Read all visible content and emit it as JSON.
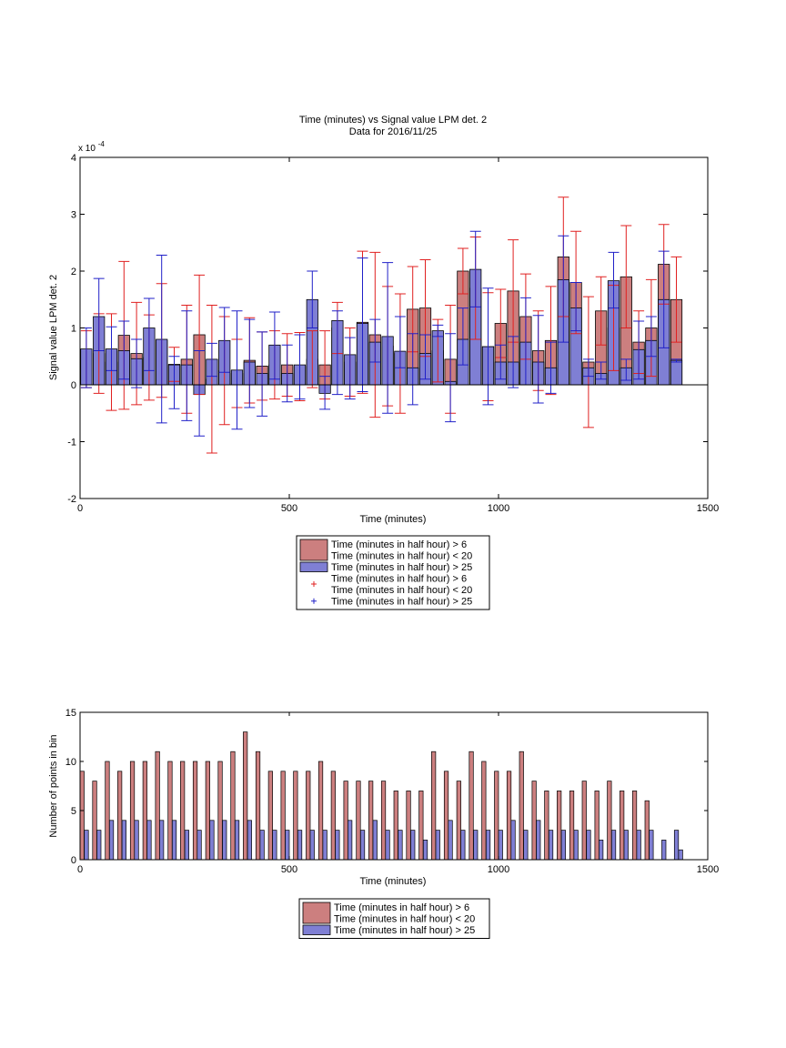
{
  "colors": {
    "red_fill": "#cc7f7f",
    "blue_fill": "#7f7fd4",
    "red_line": "#e02020",
    "blue_line": "#2020c8"
  },
  "chart_data": [
    {
      "type": "bar",
      "title": "Time (minutes) vs Signal value LPM det. 2",
      "subtitle": "Data for 2016/11/25",
      "xlabel": "Time (minutes)",
      "ylabel": "Signal value LPM det. 2",
      "exponent_label": "x 10",
      "exponent_power": "-4",
      "xlim": [
        0,
        1500
      ],
      "ylim": [
        -2,
        4
      ],
      "x_ticks": [
        0,
        500,
        1000,
        1500
      ],
      "y_ticks": [
        -2,
        -1,
        0,
        1,
        2,
        3,
        4
      ],
      "grid": false,
      "legend_placement": "below",
      "legend": [
        {
          "kind": "bar",
          "color": "red",
          "lines": [
            "Time (minutes in half hour) > 6",
            "Time (minutes in half hour) < 20"
          ]
        },
        {
          "kind": "bar",
          "color": "blue",
          "lines": [
            "Time (minutes in half hour) > 25"
          ]
        },
        {
          "kind": "marker",
          "color": "red",
          "lines": [
            "Time (minutes in half hour) > 6",
            "Time (minutes in half hour) < 20"
          ]
        },
        {
          "kind": "marker",
          "color": "blue",
          "lines": [
            "Time (minutes in half hour) > 25"
          ]
        }
      ],
      "series": [
        {
          "color": "red",
          "x": [
            15,
            45,
            75,
            105,
            135,
            165,
            195,
            225,
            255,
            285,
            315,
            345,
            375,
            405,
            435,
            465,
            495,
            525,
            555,
            585,
            615,
            645,
            675,
            705,
            735,
            765,
            795,
            825,
            855,
            885,
            915,
            945,
            975,
            1005,
            1035,
            1065,
            1095,
            1125,
            1155,
            1185,
            1215,
            1245,
            1275,
            1305,
            1335,
            1365,
            1395,
            1425
          ],
          "values": [
            0.45,
            0.55,
            0.4,
            0.87,
            0.55,
            0.48,
            0.78,
            0.36,
            0.45,
            0.88,
            0.1,
            0.25,
            0.2,
            0.43,
            0.33,
            0.35,
            0.35,
            0.32,
            0.45,
            0.35,
            1.0,
            0.4,
            1.1,
            0.88,
            0.68,
            0.55,
            1.33,
            1.35,
            0.6,
            0.45,
            2.0,
            1.7,
            0.67,
            1.08,
            1.65,
            1.2,
            0.6,
            0.78,
            2.25,
            1.8,
            0.4,
            1.3,
            1.0,
            1.9,
            0.75,
            1.0,
            2.12,
            1.5
          ],
          "err": [
            0.5,
            0.7,
            0.85,
            1.3,
            0.9,
            0.75,
            1.0,
            0.3,
            0.95,
            1.05,
            1.3,
            0.95,
            0.6,
            0.75,
            0.6,
            0.6,
            0.55,
            0.6,
            0.5,
            0.6,
            0.45,
            0.6,
            1.25,
            1.45,
            1.05,
            1.05,
            0.75,
            0.85,
            0.55,
            0.95,
            0.4,
            0.9,
            0.95,
            0.6,
            0.9,
            0.75,
            0.7,
            0.95,
            1.05,
            0.9,
            1.15,
            0.6,
            0.75,
            0.9,
            0.55,
            0.85,
            0.7,
            0.75
          ]
        },
        {
          "color": "blue",
          "x": [
            15,
            45,
            75,
            105,
            135,
            165,
            195,
            225,
            255,
            285,
            315,
            345,
            375,
            405,
            435,
            465,
            495,
            525,
            555,
            585,
            615,
            645,
            675,
            705,
            735,
            765,
            795,
            825,
            855,
            885,
            915,
            945,
            975,
            1005,
            1035,
            1065,
            1095,
            1125,
            1155,
            1185,
            1215,
            1245,
            1275,
            1305,
            1335,
            1365,
            1395,
            1425
          ],
          "values": [
            0.63,
            1.2,
            0.63,
            0.6,
            0.46,
            1.0,
            0.8,
            0.35,
            0.35,
            -0.17,
            0.45,
            0.78,
            0.26,
            0.4,
            0.2,
            0.7,
            0.2,
            0.35,
            1.5,
            -0.15,
            1.13,
            0.53,
            1.08,
            0.75,
            0.85,
            0.59,
            0.3,
            0.55,
            0.95,
            0.06,
            0.8,
            2.03,
            0.67,
            0.4,
            0.4,
            0.75,
            0.4,
            0.3,
            1.85,
            1.35,
            0.3,
            0.2,
            1.83,
            0.3,
            0.62,
            0.78,
            1.5,
            0.43
          ]
        }
      ],
      "blue_err_segments": [
        [
          15,
          -0.05,
          1.0
        ],
        [
          45,
          0.6,
          1.87
        ],
        [
          75,
          0.25,
          1.02
        ],
        [
          105,
          0.1,
          1.12
        ],
        [
          135,
          -0.05,
          0.8
        ],
        [
          165,
          0.25,
          1.52
        ],
        [
          195,
          -0.67,
          2.28
        ],
        [
          225,
          -0.42,
          0.5
        ],
        [
          255,
          -0.63,
          1.3
        ],
        [
          285,
          -0.9,
          0.6
        ],
        [
          315,
          0.15,
          0.73
        ],
        [
          345,
          0.22,
          1.36
        ],
        [
          375,
          -0.78,
          1.3
        ],
        [
          405,
          -0.4,
          1.15
        ],
        [
          435,
          -0.55,
          0.93
        ],
        [
          465,
          0.1,
          1.28
        ],
        [
          495,
          -0.3,
          0.7
        ],
        [
          525,
          -0.25,
          0.88
        ],
        [
          555,
          1.0,
          2.0
        ],
        [
          585,
          -0.43,
          0.15
        ],
        [
          615,
          -0.17,
          1.3
        ],
        [
          645,
          -0.25,
          0.83
        ],
        [
          675,
          -0.12,
          2.23
        ],
        [
          705,
          0.4,
          1.15
        ],
        [
          735,
          -0.5,
          2.15
        ],
        [
          765,
          0.3,
          1.2
        ],
        [
          795,
          -0.35,
          0.9
        ],
        [
          825,
          0.1,
          0.88
        ],
        [
          855,
          0.85,
          1.05
        ],
        [
          885,
          -0.65,
          0.9
        ],
        [
          915,
          0.35,
          1.35
        ],
        [
          945,
          1.37,
          2.7
        ],
        [
          975,
          -0.35,
          1.7
        ],
        [
          1005,
          0.1,
          0.7
        ],
        [
          1035,
          -0.05,
          0.85
        ],
        [
          1065,
          0.0,
          1.53
        ],
        [
          1095,
          -0.32,
          1.22
        ],
        [
          1125,
          -0.15,
          0.75
        ],
        [
          1155,
          0.75,
          2.62
        ],
        [
          1185,
          0.95,
          1.8
        ],
        [
          1215,
          0.15,
          0.45
        ],
        [
          1245,
          0.1,
          0.4
        ],
        [
          1275,
          1.35,
          2.33
        ],
        [
          1305,
          0.08,
          0.45
        ],
        [
          1335,
          0.1,
          1.12
        ],
        [
          1365,
          0.5,
          1.2
        ],
        [
          1395,
          0.65,
          2.35
        ],
        [
          1425,
          0.4,
          0.45
        ]
      ]
    },
    {
      "type": "bar",
      "xlabel": "Time (minutes)",
      "ylabel": "Number of points in bin",
      "xlim": [
        0,
        1500
      ],
      "ylim": [
        0,
        15
      ],
      "x_ticks": [
        0,
        500,
        1000,
        1500
      ],
      "y_ticks": [
        0,
        5,
        10,
        15
      ],
      "grid": false,
      "legend_placement": "below",
      "legend": [
        {
          "kind": "bar",
          "color": "red",
          "lines": [
            "Time (minutes in half hour) > 6",
            "Time (minutes in half hour) < 20"
          ]
        },
        {
          "kind": "bar",
          "color": "blue",
          "lines": [
            "Time (minutes in half hour) > 25"
          ]
        }
      ],
      "series": [
        {
          "color": "red",
          "x": [
            5,
            35,
            65,
            95,
            125,
            155,
            185,
            215,
            245,
            275,
            305,
            335,
            365,
            395,
            425,
            455,
            485,
            515,
            545,
            575,
            605,
            635,
            665,
            695,
            725,
            755,
            785,
            815,
            845,
            875,
            905,
            935,
            965,
            995,
            1025,
            1055,
            1085,
            1115,
            1145,
            1175,
            1205,
            1235,
            1265,
            1295,
            1325,
            1355,
            1385,
            1415
          ],
          "values": [
            9,
            8,
            10,
            9,
            10,
            10,
            11,
            10,
            10,
            10,
            10,
            10,
            11,
            13,
            11,
            9,
            9,
            9,
            9,
            10,
            9,
            8,
            8,
            8,
            8,
            7,
            7,
            7,
            11,
            9,
            8,
            11,
            10,
            9,
            9,
            11,
            8,
            7,
            7,
            7,
            8,
            7,
            8,
            7,
            7,
            6,
            0,
            0
          ]
        },
        {
          "color": "blue",
          "x": [
            15,
            45,
            75,
            105,
            135,
            165,
            195,
            225,
            255,
            285,
            315,
            345,
            375,
            405,
            435,
            465,
            495,
            525,
            555,
            585,
            615,
            645,
            675,
            705,
            735,
            765,
            795,
            825,
            855,
            885,
            915,
            945,
            975,
            1005,
            1035,
            1065,
            1095,
            1125,
            1155,
            1185,
            1215,
            1245,
            1275,
            1305,
            1335,
            1365,
            1395,
            1425,
            1435
          ],
          "values": [
            3,
            3,
            4,
            4,
            4,
            4,
            4,
            4,
            3,
            3,
            4,
            4,
            4,
            4,
            3,
            3,
            3,
            3,
            3,
            3,
            3,
            4,
            3,
            4,
            3,
            3,
            3,
            2,
            3,
            4,
            3,
            3,
            3,
            3,
            4,
            3,
            4,
            3,
            3,
            3,
            3,
            2,
            3,
            3,
            3,
            3,
            2,
            3,
            1
          ]
        }
      ]
    }
  ]
}
